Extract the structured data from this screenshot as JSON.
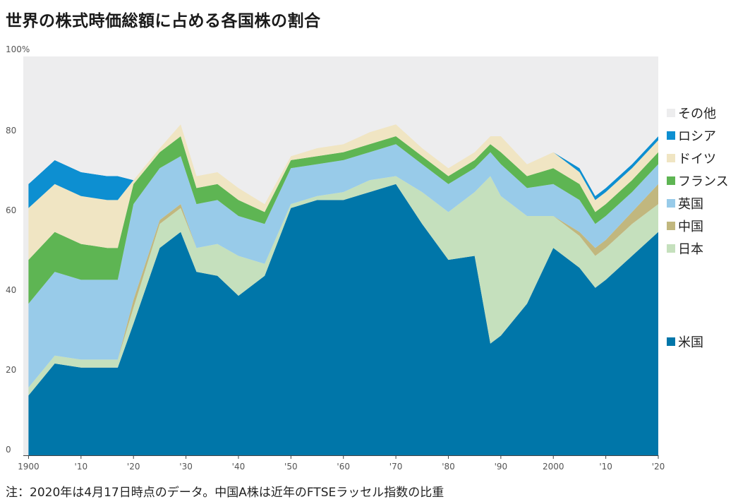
{
  "title": "世界の株式時価総額に占める各国株の割合",
  "note": "注：2020年は4月17日時点のデータ。中国A株は近年のFTSEラッセル指数の比重",
  "chart_data": {
    "type": "area",
    "stacked": true,
    "stacking_order": [
      "米国",
      "日本",
      "中国",
      "英国",
      "フランス",
      "ドイツ",
      "ロシア",
      "その他"
    ],
    "x": [
      1900,
      1905,
      1910,
      1915,
      1917,
      1920,
      1925,
      1929,
      1932,
      1936,
      1940,
      1945,
      1950,
      1955,
      1960,
      1965,
      1970,
      1975,
      1980,
      1985,
      1988,
      1990,
      1995,
      2000,
      2005,
      2008,
      2010,
      2015,
      2020
    ],
    "x_ticks": [
      "1900",
      "'10",
      "'20",
      "'30",
      "'40",
      "'50",
      "'60",
      "'70",
      "'80",
      "'90",
      "2000",
      "'10",
      "'20"
    ],
    "x_tick_years": [
      1900,
      1910,
      1920,
      1930,
      1940,
      1950,
      1960,
      1970,
      1980,
      1990,
      2000,
      2010,
      2020
    ],
    "x_range": [
      1899,
      2020
    ],
    "y_ticks": [
      "0",
      "20",
      "40",
      "60",
      "80",
      "100%"
    ],
    "y_tick_values": [
      0,
      20,
      40,
      60,
      80,
      100
    ],
    "ylim": [
      0,
      100
    ],
    "legend_position": "right",
    "series": [
      {
        "name": "米国",
        "color": "#0076a9",
        "values": [
          15,
          23,
          22,
          22,
          22,
          33,
          52,
          56,
          46,
          45,
          40,
          45,
          62,
          64,
          64,
          66,
          68,
          58,
          49,
          50,
          28,
          30,
          38,
          52,
          47,
          42,
          44,
          50,
          56
        ]
      },
      {
        "name": "日本",
        "color": "#c5e0bd",
        "values": [
          2,
          2,
          2,
          2,
          2,
          4,
          6,
          6,
          6,
          8,
          10,
          3,
          1,
          1,
          2,
          3,
          2,
          8,
          12,
          16,
          42,
          35,
          22,
          8,
          8,
          8,
          8,
          8,
          7
        ]
      },
      {
        "name": "中国",
        "color": "#c1b77e",
        "values": [
          0,
          0,
          0,
          0,
          0,
          2,
          1,
          1,
          0,
          0,
          0,
          0,
          0,
          0,
          0,
          0,
          0,
          0,
          0,
          0,
          0,
          0,
          0,
          0,
          1,
          2,
          2,
          3,
          5
        ]
      },
      {
        "name": "英国",
        "color": "#98cbe9",
        "values": [
          21,
          21,
          20,
          20,
          20,
          24,
          13,
          12,
          11,
          11,
          10,
          10,
          9,
          8,
          8,
          7,
          8,
          7,
          7,
          6,
          6,
          8,
          7,
          8,
          8,
          6,
          6,
          5,
          5
        ]
      },
      {
        "name": "フランス",
        "color": "#5eb553",
        "values": [
          11,
          10,
          9,
          8,
          8,
          5,
          4,
          5,
          4,
          4,
          4,
          3,
          2,
          2,
          2,
          2,
          2,
          2,
          2,
          2,
          2,
          3,
          3,
          4,
          4,
          3,
          3,
          3,
          3
        ]
      },
      {
        "name": "ドイツ",
        "color": "#f0e5c3",
        "values": [
          13,
          12,
          12,
          12,
          12,
          1,
          1,
          3,
          3,
          3,
          3,
          2,
          1,
          2,
          2,
          3,
          3,
          2,
          2,
          2,
          2,
          4,
          3,
          4,
          3,
          3,
          3,
          3,
          3
        ]
      },
      {
        "name": "ロシア",
        "color": "#0d8fd1",
        "values": [
          6,
          6,
          6,
          6,
          6,
          0,
          0,
          0,
          0,
          0,
          0,
          0,
          0,
          0,
          0,
          0,
          0,
          0,
          0,
          0,
          0,
          0,
          0,
          0,
          1,
          1,
          1,
          1,
          1
        ]
      },
      {
        "name": "その他",
        "color": "#ededee",
        "values": [
          32,
          26,
          29,
          30,
          30,
          31,
          23,
          17,
          30,
          29,
          33,
          37,
          25,
          23,
          22,
          19,
          17,
          23,
          28,
          24,
          20,
          20,
          27,
          24,
          28,
          35,
          33,
          27,
          20
        ]
      }
    ]
  }
}
